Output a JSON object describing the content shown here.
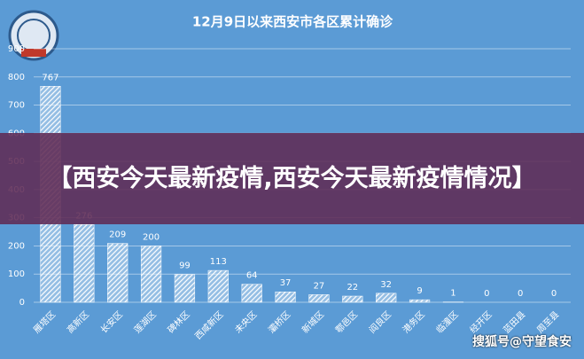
{
  "chart_data": {
    "type": "bar",
    "title": "12月9日以来西安市各区累计确诊",
    "categories": [
      "雁塔区",
      "高新区",
      "长安区",
      "莲湖区",
      "碑林区",
      "西咸新区",
      "未央区",
      "灞桥区",
      "新城区",
      "鄠邑区",
      "阎良区",
      "港务区",
      "临潼区",
      "经开区",
      "蓝田县",
      "周至县"
    ],
    "values": [
      767,
      276,
      209,
      200,
      99,
      113,
      64,
      37,
      27,
      22,
      32,
      9,
      1,
      0,
      0,
      0
    ],
    "color": "#ffffff",
    "ylim": [
      0,
      900
    ],
    "yticks": [
      0,
      100,
      200,
      300,
      400,
      500,
      600,
      700,
      800,
      900
    ],
    "grid": true
  },
  "banner": "【西安今天最新疫情,西安今天最新疫情情况】",
  "watermark": "搜狐号@守望食安"
}
